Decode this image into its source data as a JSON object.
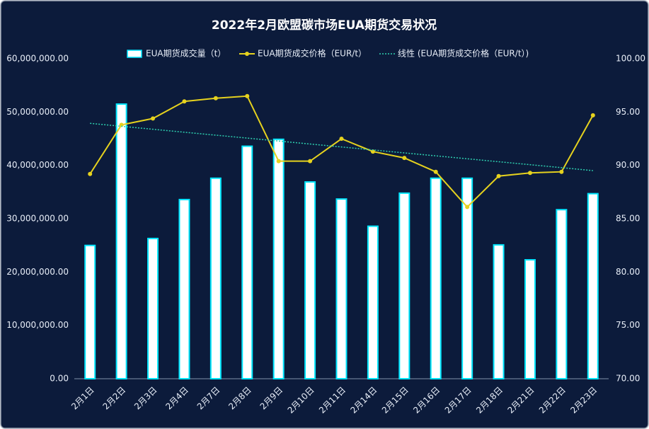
{
  "chart_data": {
    "type": "bar",
    "title": "2022年2月欧盟碳市场EUA期货交易状况",
    "categories": [
      "2月1日",
      "2月2日",
      "2月3日",
      "2月4日",
      "2月7日",
      "2月8日",
      "2月9日",
      "2月10日",
      "2月11日",
      "2月14日",
      "2月15日",
      "2月16日",
      "2月17日",
      "2月18日",
      "2月21日",
      "2月22日",
      "2月23日"
    ],
    "series": [
      {
        "name": "EUA期货成交量（t）",
        "type": "bar",
        "color": "#ffffff",
        "edge": "#00e5ff",
        "values": [
          25000000,
          51500000,
          26300000,
          33600000,
          37600000,
          43600000,
          44900000,
          36900000,
          33700000,
          28600000,
          34800000,
          37600000,
          37600000,
          25100000,
          22300000,
          31700000,
          34700000
        ]
      },
      {
        "name": "EUA期货成交价格（EUR/t）",
        "type": "line",
        "axis": "y2",
        "color": "#e6d21e",
        "values": [
          89.2,
          93.8,
          94.4,
          96.0,
          96.3,
          96.5,
          90.4,
          90.4,
          92.5,
          91.3,
          90.7,
          89.4,
          86.1,
          89.0,
          89.3,
          89.4,
          94.7
        ]
      },
      {
        "name": "线性 (EUA期货成交价格（EUR/t）)",
        "type": "trendline",
        "axis": "y2",
        "color": "#2ed0b0"
      }
    ],
    "ylim": [
      0,
      60000000
    ],
    "yticks": [
      {
        "value": 0,
        "label": "0.00"
      },
      {
        "value": 10000000,
        "label": "10,000,000.00"
      },
      {
        "value": 20000000,
        "label": "20,000,000.00"
      },
      {
        "value": 30000000,
        "label": "30,000,000.00"
      },
      {
        "value": 40000000,
        "label": "40,000,000.00"
      },
      {
        "value": 50000000,
        "label": "50,000,000.00"
      },
      {
        "value": 60000000,
        "label": "60,000,000.00"
      }
    ],
    "y2lim": [
      70,
      100
    ],
    "y2ticks": [
      {
        "value": 70,
        "label": "70.00"
      },
      {
        "value": 75,
        "label": "75.00"
      },
      {
        "value": 80,
        "label": "80.00"
      },
      {
        "value": 85,
        "label": "85.00"
      },
      {
        "value": 90,
        "label": "90.00"
      },
      {
        "value": 95,
        "label": "95.00"
      },
      {
        "value": 100,
        "label": "100.00"
      }
    ],
    "grid": false,
    "legend": "top"
  }
}
